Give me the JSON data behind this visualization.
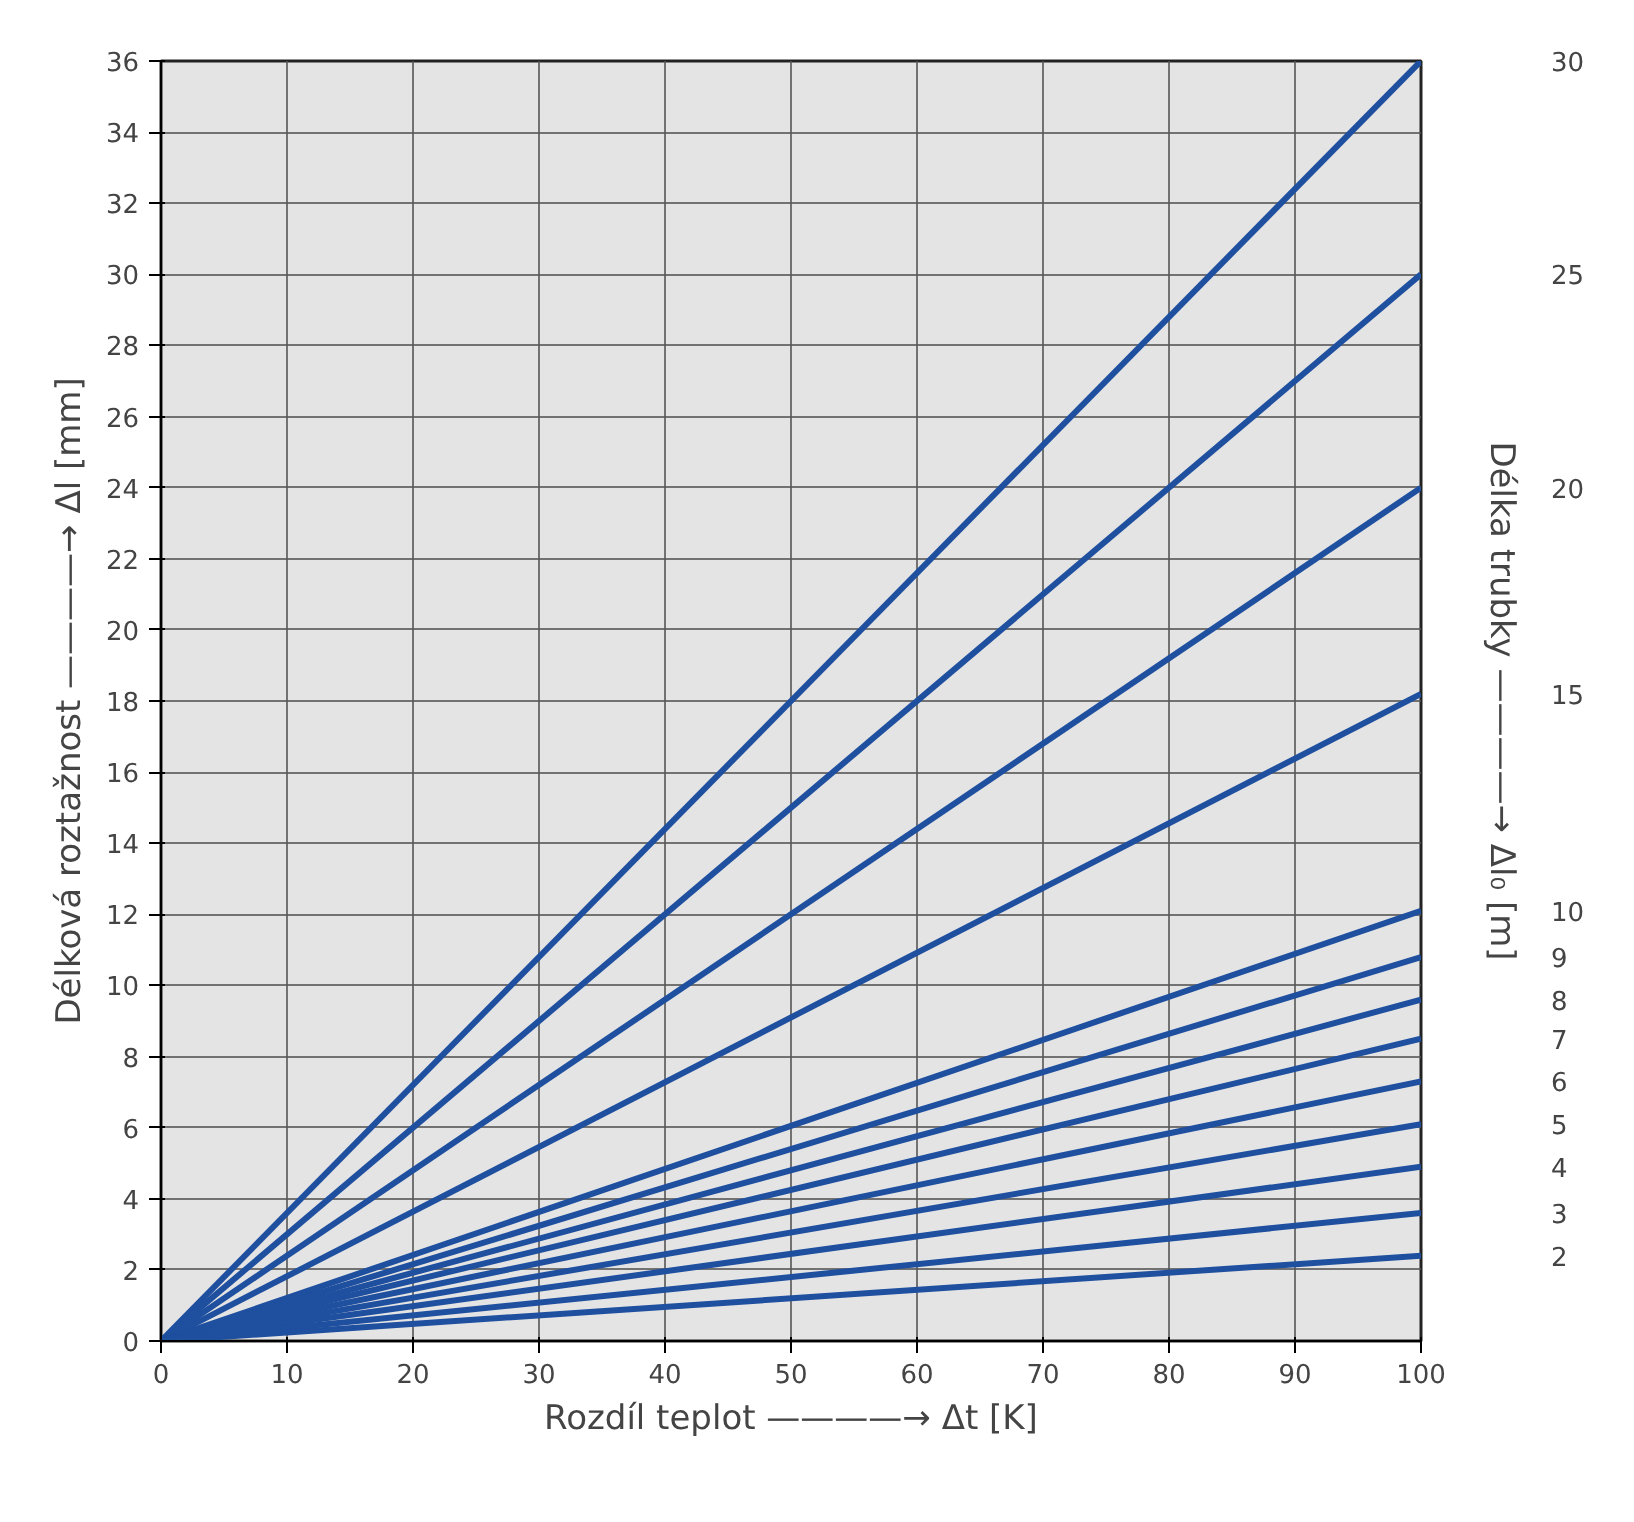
{
  "chart_data": {
    "type": "line",
    "xlabel": "Rozdíl teplot ————→ Δt [K]",
    "ylabel": "Délková roztažnost ————→ Δl [mm]",
    "y2label": "Délka trubky ————→ Δl₀ [m]",
    "x": [
      0,
      100
    ],
    "xlim": [
      0,
      100
    ],
    "ylim": [
      0,
      36
    ],
    "xticks": [
      0,
      10,
      20,
      30,
      40,
      50,
      60,
      70,
      80,
      90,
      100
    ],
    "yticks": [
      0,
      2,
      4,
      6,
      8,
      10,
      12,
      14,
      16,
      18,
      20,
      22,
      24,
      26,
      28,
      30,
      32,
      34,
      36
    ],
    "grid": true,
    "marker": "none",
    "line_style": "solid",
    "series": [
      {
        "name": "30",
        "color": "#1f4f9f",
        "values": [
          0,
          36
        ]
      },
      {
        "name": "25",
        "color": "#1f4f9f",
        "values": [
          0,
          30
        ]
      },
      {
        "name": "20",
        "color": "#1f4f9f",
        "values": [
          0,
          24
        ]
      },
      {
        "name": "15",
        "color": "#1f4f9f",
        "values": [
          0,
          18.2
        ]
      },
      {
        "name": "10",
        "color": "#1f4f9f",
        "values": [
          0,
          12.1
        ]
      },
      {
        "name": "9",
        "color": "#1f4f9f",
        "values": [
          0,
          10.8
        ]
      },
      {
        "name": "8",
        "color": "#1f4f9f",
        "values": [
          0,
          9.6
        ]
      },
      {
        "name": "7",
        "color": "#1f4f9f",
        "values": [
          0,
          8.5
        ]
      },
      {
        "name": "6",
        "color": "#1f4f9f",
        "values": [
          0,
          7.3
        ]
      },
      {
        "name": "5",
        "color": "#1f4f9f",
        "values": [
          0,
          6.1
        ]
      },
      {
        "name": "4",
        "color": "#1f4f9f",
        "values": [
          0,
          4.9
        ]
      },
      {
        "name": "3",
        "color": "#1f4f9f",
        "values": [
          0,
          3.6
        ]
      },
      {
        "name": "2",
        "color": "#1f4f9f",
        "values": [
          0,
          2.4
        ]
      }
    ]
  }
}
